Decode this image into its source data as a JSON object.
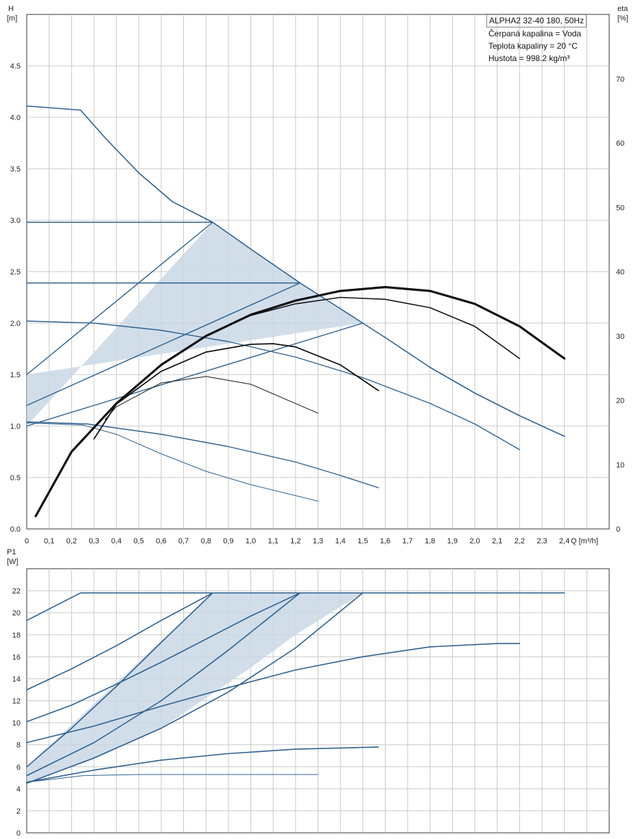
{
  "info": {
    "title": "ALPHA2 32-40 180, 50Hz",
    "lines": [
      "Čerpaná kapalina = Voda",
      "Teplota kapaliny = 20 °C",
      "Hustota = 998.2 kg/m³"
    ]
  },
  "colors": {
    "curve_blue": "#2c5f8e",
    "efficiency_black": "#111111",
    "fill": "#c9d8e6",
    "grid": "#c8c8c8"
  },
  "chart_data": [
    {
      "type": "line",
      "ylabel": "H",
      "yunit": "[m]",
      "y2label": "eta",
      "y2unit": "[%]",
      "xlabel": "Q [m³/h]",
      "xlim": [
        0,
        2.6
      ],
      "ylim": [
        0,
        5.0
      ],
      "y2lim": [
        0,
        80
      ],
      "grid": true,
      "xticks": [
        "0",
        "0,1",
        "0,2",
        "0,3",
        "0,4",
        "0,5",
        "0,6",
        "0,7",
        "0,8",
        "0,9",
        "1,0",
        "1,1",
        "1,2",
        "1,3",
        "1,4",
        "1,5",
        "1,6",
        "1,7",
        "1,8",
        "1,9",
        "2,0",
        "2,1",
        "2,2",
        "2,3",
        "2,4"
      ],
      "yticks": [
        "0.0",
        "0.5",
        "1.0",
        "1.5",
        "2.0",
        "2.5",
        "3.0",
        "3.5",
        "4.0",
        "4.5"
      ],
      "y2ticks": [
        "0",
        "10",
        "20",
        "30",
        "40",
        "50",
        "60",
        "70"
      ],
      "shaded_region": {
        "x": [
          0,
          0.83,
          1.22,
          1.5,
          0
        ],
        "y": [
          1.0,
          2.98,
          2.39,
          2.0,
          1.5
        ]
      },
      "series": [
        {
          "type": "head",
          "x": [
            0,
            0.24,
            0.35,
            0.5,
            0.65,
            0.83,
            1.0,
            1.22,
            1.4,
            1.5,
            1.6,
            1.8,
            2.0,
            2.2,
            2.4
          ],
          "y": [
            4.11,
            4.07,
            3.8,
            3.46,
            3.18,
            2.98,
            2.72,
            2.39,
            2.14,
            2.0,
            1.86,
            1.57,
            1.32,
            1.1,
            0.9
          ]
        },
        {
          "type": "head",
          "x": [
            0,
            0.83
          ],
          "y": [
            2.98,
            2.98
          ]
        },
        {
          "type": "head",
          "x": [
            0,
            1.22
          ],
          "y": [
            2.39,
            2.39
          ]
        },
        {
          "type": "head",
          "x": [
            0,
            0.83
          ],
          "y": [
            1.5,
            2.98
          ]
        },
        {
          "type": "head",
          "x": [
            0,
            1.22
          ],
          "y": [
            1.2,
            2.39
          ]
        },
        {
          "type": "head",
          "x": [
            0,
            1.5
          ],
          "y": [
            1.0,
            2.0
          ]
        },
        {
          "type": "head",
          "x": [
            0,
            0.3,
            0.6,
            0.9,
            1.2,
            1.5,
            1.8,
            2.0,
            2.2
          ],
          "y": [
            2.02,
            2.0,
            1.93,
            1.82,
            1.67,
            1.47,
            1.22,
            1.02,
            0.77
          ]
        },
        {
          "type": "head",
          "x": [
            0,
            0.27,
            0.6,
            0.9,
            1.2,
            1.4,
            1.57
          ],
          "y": [
            1.04,
            1.02,
            0.92,
            0.8,
            0.65,
            0.52,
            0.4
          ]
        },
        {
          "type": "head",
          "x": [
            0,
            0.25,
            0.4,
            0.6,
            0.8,
            1.0,
            1.3
          ],
          "y": [
            1.03,
            1.01,
            0.92,
            0.73,
            0.56,
            0.43,
            0.27
          ]
        },
        {
          "type": "efficiency",
          "x": [
            0.04,
            0.2,
            0.4,
            0.6,
            0.8,
            1.0,
            1.2,
            1.4,
            1.6,
            1.8,
            2.0,
            2.2,
            2.4
          ],
          "y": [
            2,
            12,
            19.5,
            25.5,
            30,
            33.3,
            35.5,
            37,
            37.6,
            37,
            35,
            31.5,
            26.5
          ]
        },
        {
          "type": "efficiency",
          "x": [
            0.04,
            0.2,
            0.4,
            0.6,
            0.8,
            1.0,
            1.2,
            1.4,
            1.6,
            1.8,
            2.0,
            2.2
          ],
          "y": [
            2,
            12,
            19.5,
            25.5,
            30,
            33.2,
            35,
            36,
            35.7,
            34.4,
            31.5,
            26.5
          ]
        },
        {
          "type": "efficiency",
          "x": [
            0.3,
            0.4,
            0.6,
            0.8,
            1.0,
            1.1,
            1.2,
            1.4,
            1.57
          ],
          "y": [
            14,
            19.4,
            24.5,
            27.5,
            28.7,
            28.8,
            28.3,
            25.5,
            21.5
          ]
        },
        {
          "type": "efficiency",
          "x": [
            0.35,
            0.4,
            0.6,
            0.8,
            1.0,
            1.2,
            1.3
          ],
          "y": [
            17,
            19,
            22.7,
            23.7,
            22.5,
            19.5,
            18
          ]
        }
      ]
    },
    {
      "type": "line",
      "ylabel": "P1",
      "yunit": "[W]",
      "xlim": [
        0,
        2.6
      ],
      "ylim": [
        0,
        24
      ],
      "grid": true,
      "yticks": [
        "0",
        "2",
        "4",
        "6",
        "8",
        "10",
        "12",
        "14",
        "16",
        "18",
        "20",
        "22"
      ],
      "shaded_region": {
        "x": [
          0,
          0.83,
          1.5,
          1.2,
          1.0,
          0.6,
          0.3,
          0
        ],
        "y": [
          6,
          21.8,
          21.8,
          18,
          15,
          9.5,
          6.7,
          4.5
        ]
      },
      "series": [
        {
          "type": "power",
          "x": [
            0,
            0.24,
            2.4
          ],
          "y": [
            19.3,
            21.8,
            21.8
          ]
        },
        {
          "type": "power",
          "x": [
            0,
            0.2,
            0.4,
            0.6,
            0.83
          ],
          "y": [
            13,
            14.9,
            17,
            19.3,
            21.8
          ]
        },
        {
          "type": "power",
          "x": [
            0,
            0.2,
            0.4,
            0.6,
            0.8,
            1.0,
            1.22
          ],
          "y": [
            10.1,
            11.6,
            13.5,
            15.5,
            17.6,
            19.7,
            21.8
          ]
        },
        {
          "type": "power",
          "x": [
            0,
            0.2,
            0.4,
            0.6,
            0.83
          ],
          "y": [
            6,
            9.5,
            13.3,
            17.3,
            21.8
          ]
        },
        {
          "type": "power",
          "x": [
            0,
            0.3,
            0.6,
            0.9,
            1.22
          ],
          "y": [
            5.2,
            8.2,
            12,
            16.6,
            21.8
          ]
        },
        {
          "type": "power",
          "x": [
            0,
            0.3,
            0.6,
            0.9,
            1.2,
            1.5
          ],
          "y": [
            4.5,
            6.8,
            9.5,
            12.8,
            16.8,
            21.8
          ]
        },
        {
          "type": "power",
          "x": [
            0,
            0.3,
            0.6,
            0.9,
            1.2,
            1.5,
            1.8,
            2.1,
            2.2
          ],
          "y": [
            8.2,
            9.7,
            11.5,
            13.2,
            14.8,
            16.0,
            16.9,
            17.2,
            17.2
          ]
        },
        {
          "type": "power",
          "x": [
            0,
            0.3,
            0.6,
            0.9,
            1.2,
            1.57
          ],
          "y": [
            4.6,
            5.7,
            6.6,
            7.2,
            7.6,
            7.8
          ]
        },
        {
          "type": "power",
          "x": [
            0,
            0.25,
            0.5,
            0.8,
            1.3
          ],
          "y": [
            4.6,
            5.2,
            5.3,
            5.3,
            5.3
          ]
        }
      ]
    }
  ]
}
